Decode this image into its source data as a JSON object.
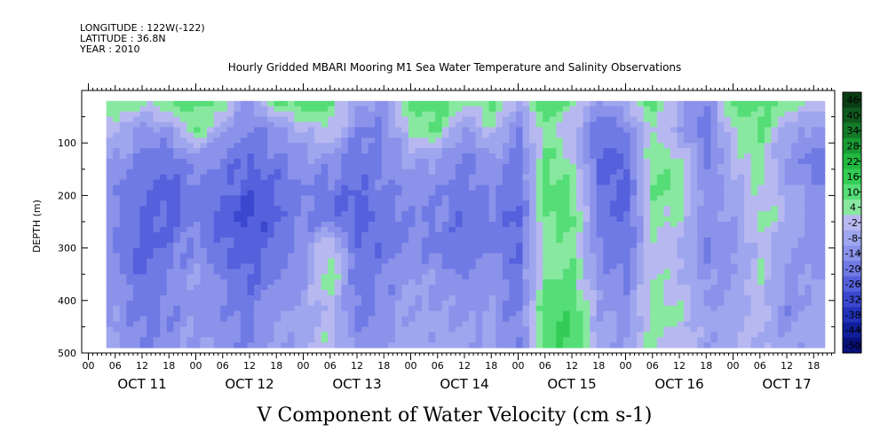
{
  "header": {
    "lines": [
      "LONGITUDE : 122W(-122)",
      "LATITUDE : 36.8N",
      "YEAR : 2010"
    ],
    "title": "Hourly Gridded MBARI Mooring M1 Sea Water Temperature and Salinity Observations"
  },
  "chart_data": {
    "type": "heatmap",
    "title": "Hourly Gridded MBARI Mooring M1 Sea Water Temperature and Salinity Observations",
    "xlabel": "",
    "ylabel": "DEPTH (m)",
    "variable_label": "V Component of Water Velocity (cm s-1)",
    "ylim": [
      500,
      0
    ],
    "yticks": [
      100,
      200,
      300,
      400,
      500
    ],
    "hour_ticks": [
      "00",
      "06",
      "12",
      "18"
    ],
    "days": [
      "OCT 11",
      "OCT 12",
      "OCT 13",
      "OCT 14",
      "OCT 15",
      "OCT 16",
      "OCT 17"
    ],
    "colorbar": {
      "labels": [
        "46",
        "40",
        "34",
        "28",
        "22",
        "16",
        "10",
        "4",
        "-2",
        "-8",
        "-14",
        "-20",
        "-26",
        "-32",
        "-38",
        "-44",
        "-50"
      ],
      "colors": [
        "#0a3d14",
        "#0f5a1e",
        "#137a28",
        "#199b33",
        "#22b83f",
        "#33cc55",
        "#55dd77",
        "#88e8a0",
        "#b8b8f0",
        "#9ea6ee",
        "#8a92ea",
        "#707ae4",
        "#5560dc",
        "#3a48d0",
        "#2232bb",
        "#101e9a",
        "#08107a"
      ]
    },
    "columns": [
      {
        "label": "Oct 11 06h",
        "profile": [
          8,
          0,
          -8,
          -14,
          -14,
          -14,
          -10,
          -10,
          -6
        ]
      },
      {
        "label": "Oct 11 12h",
        "profile": [
          6,
          -10,
          -16,
          -20,
          -20,
          -24,
          -20,
          -16,
          -14
        ]
      },
      {
        "label": "Oct 11 18h",
        "profile": [
          10,
          -8,
          -18,
          -22,
          -22,
          -18,
          -12,
          -14,
          -12
        ]
      },
      {
        "label": "Oct 12 00h",
        "profile": [
          14,
          10,
          -10,
          -16,
          -14,
          -12,
          -8,
          -10,
          -6
        ]
      },
      {
        "label": "Oct 12 06h",
        "profile": [
          8,
          -6,
          -16,
          -18,
          -24,
          -20,
          -14,
          -12,
          -10
        ]
      },
      {
        "label": "Oct 12 12h",
        "profile": [
          -12,
          -16,
          -20,
          -24,
          -28,
          -24,
          -20,
          -16,
          -14
        ]
      },
      {
        "label": "Oct 12 18h",
        "profile": [
          10,
          -10,
          -16,
          -20,
          -22,
          -18,
          -14,
          -10,
          -8
        ]
      },
      {
        "label": "Oct 13 00h",
        "profile": [
          16,
          -2,
          -10,
          -14,
          -14,
          -10,
          -8,
          -6,
          -4
        ]
      },
      {
        "label": "Oct 13 06h",
        "profile": [
          12,
          4,
          -10,
          -16,
          -18,
          6,
          10,
          0,
          4
        ]
      },
      {
        "label": "Oct 13 12h",
        "profile": [
          -6,
          -14,
          -18,
          -20,
          -24,
          -20,
          -18,
          -16,
          -10
        ]
      },
      {
        "label": "Oct 13 18h",
        "profile": [
          -10,
          -14,
          -14,
          -16,
          -18,
          -18,
          -14,
          -12,
          -10
        ]
      },
      {
        "label": "Oct 14 00h",
        "profile": [
          10,
          6,
          -6,
          -12,
          -14,
          -12,
          -8,
          -6,
          -4
        ]
      },
      {
        "label": "Oct 14 06h",
        "profile": [
          16,
          10,
          -8,
          -12,
          -14,
          -16,
          -10,
          -8,
          -6
        ]
      },
      {
        "label": "Oct 14 12h",
        "profile": [
          4,
          -10,
          -16,
          -18,
          -20,
          -18,
          -14,
          -10,
          -6
        ]
      },
      {
        "label": "Oct 14 18h",
        "profile": [
          14,
          2,
          -8,
          -12,
          -16,
          -14,
          -10,
          -8,
          -6
        ]
      },
      {
        "label": "Oct 15 00h",
        "profile": [
          -4,
          -14,
          -18,
          -20,
          -22,
          -20,
          -18,
          -16,
          -14
        ]
      },
      {
        "label": "Oct 15 06h",
        "profile": [
          16,
          8,
          10,
          14,
          10,
          6,
          10,
          14,
          12
        ]
      },
      {
        "label": "Oct 15 12h",
        "profile": [
          10,
          -2,
          4,
          10,
          12,
          8,
          12,
          16,
          18
        ]
      },
      {
        "label": "Oct 15 18h",
        "profile": [
          -10,
          -18,
          -22,
          -18,
          -16,
          -14,
          -10,
          -6,
          -4
        ]
      },
      {
        "label": "Oct 16 00h",
        "profile": [
          -2,
          -16,
          -20,
          -24,
          -22,
          -20,
          -14,
          -10,
          -8
        ]
      },
      {
        "label": "Oct 16 06h",
        "profile": [
          14,
          4,
          8,
          10,
          6,
          2,
          4,
          8,
          6
        ]
      },
      {
        "label": "Oct 16 12h",
        "profile": [
          -4,
          -8,
          6,
          10,
          4,
          -2,
          0,
          4,
          2
        ]
      },
      {
        "label": "Oct 16 18h",
        "profile": [
          -14,
          -18,
          -16,
          -14,
          -12,
          -14,
          -10,
          -8,
          -6
        ]
      },
      {
        "label": "Oct 17 00h",
        "profile": [
          12,
          4,
          0,
          -4,
          -8,
          -10,
          -8,
          -6,
          -4
        ]
      },
      {
        "label": "Oct 17 06h",
        "profile": [
          14,
          10,
          8,
          4,
          6,
          2,
          4,
          2,
          0
        ]
      },
      {
        "label": "Oct 17 12h",
        "profile": [
          8,
          -4,
          -10,
          -6,
          0,
          -6,
          -10,
          -12,
          -8
        ]
      },
      {
        "label": "Oct 17 18h",
        "profile": [
          4,
          -10,
          -16,
          -14,
          -10,
          -12,
          -8,
          -6,
          -4
        ]
      }
    ],
    "profile_depths": [
      20,
      75,
      130,
      185,
      240,
      300,
      360,
      420,
      480
    ],
    "data_depth_range": [
      20,
      490
    ]
  }
}
